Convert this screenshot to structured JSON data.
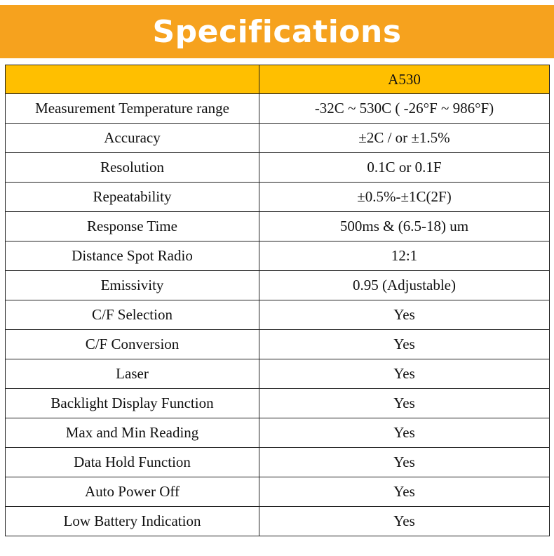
{
  "header": {
    "title": "Specifications"
  },
  "colors": {
    "banner_bg": "#F6A21E",
    "table_header_bg": "#FFBF00",
    "banner_text": "#FFFFFF"
  },
  "table": {
    "columns": [
      "",
      "A530"
    ],
    "rows": [
      [
        "Measurement Temperature range",
        "-32C ~ 530C ( -26°F ~ 986°F)"
      ],
      [
        "Accuracy",
        "±2C / or ±1.5%"
      ],
      [
        "Resolution",
        "0.1C or 0.1F"
      ],
      [
        "Repeatability",
        "±0.5%-±1C(2F)"
      ],
      [
        "Response Time",
        "500ms & (6.5-18) um"
      ],
      [
        "Distance Spot Radio",
        "12:1"
      ],
      [
        "Emissivity",
        "0.95 (Adjustable)"
      ],
      [
        "C/F Selection",
        "Yes"
      ],
      [
        "C/F Conversion",
        "Yes"
      ],
      [
        "Laser",
        "Yes"
      ],
      [
        "Backlight Display Function",
        "Yes"
      ],
      [
        "Max and Min Reading",
        "Yes"
      ],
      [
        "Data Hold Function",
        "Yes"
      ],
      [
        "Auto Power Off",
        "Yes"
      ],
      [
        "Low Battery Indication",
        "Yes"
      ]
    ]
  }
}
